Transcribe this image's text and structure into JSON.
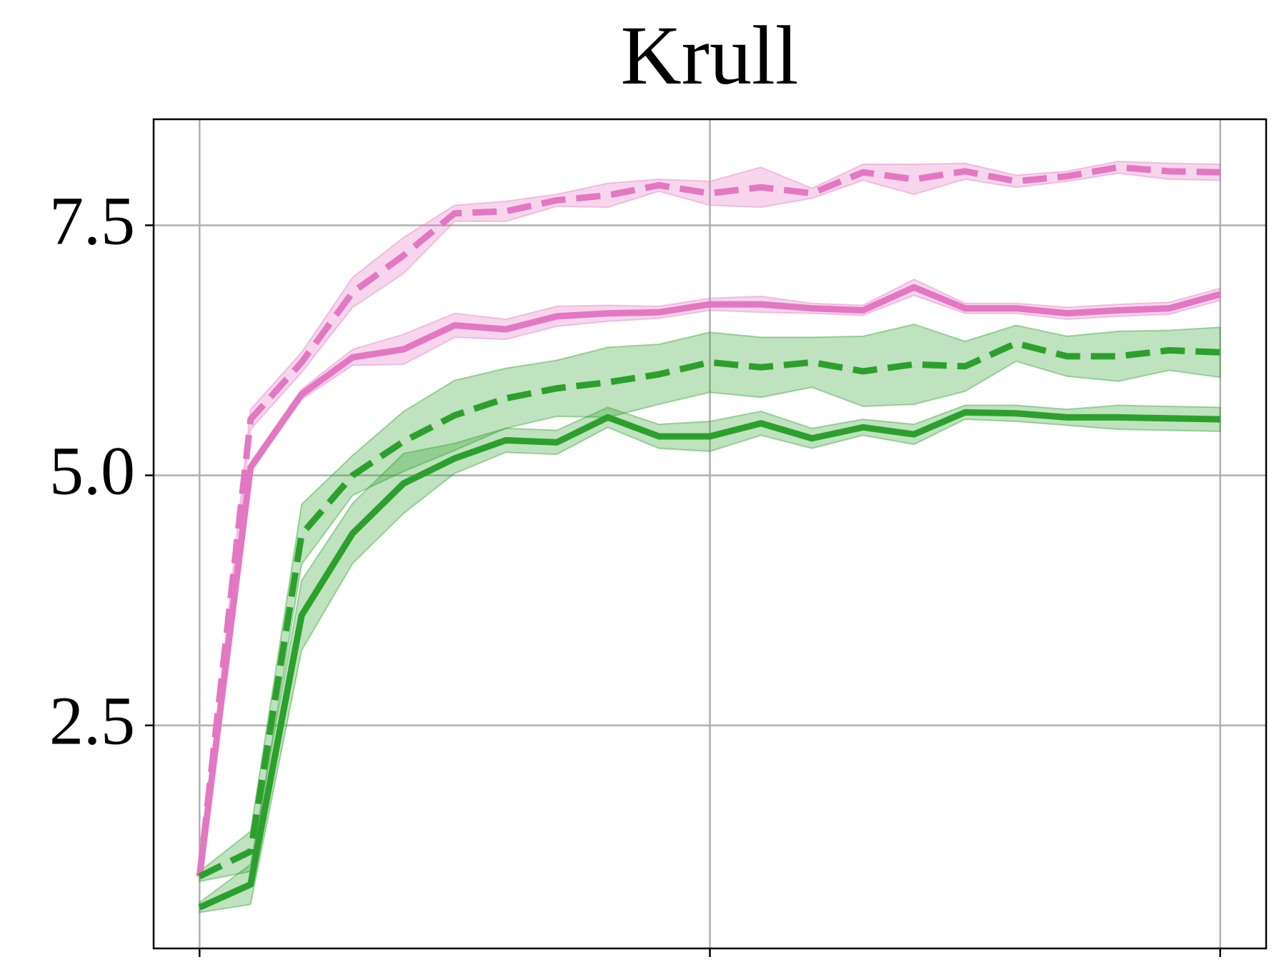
{
  "chart_data": {
    "type": "line",
    "title": "Krull",
    "x": [
      0,
      1,
      2,
      3,
      4,
      5,
      6,
      7,
      8,
      9,
      10,
      11,
      12,
      13,
      14,
      15,
      16,
      17,
      18,
      19,
      20
    ],
    "xlim": [
      -0.9,
      20.9
    ],
    "xticks": [
      0,
      10,
      20
    ],
    "ylim": [
      0.27,
      8.56
    ],
    "yticks": [
      2.5,
      {
        "value": 5,
        "label": "5.0"
      },
      7.5
    ],
    "grid": true,
    "series": [
      {
        "color": "#e377c2",
        "dashed": true,
        "values": [
          0.99,
          5.56,
          6.13,
          6.83,
          7.2,
          7.62,
          7.64,
          7.75,
          7.8,
          7.9,
          7.82,
          7.88,
          7.82,
          8.03,
          7.96,
          8.04,
          7.94,
          7.99,
          8.08,
          8.04,
          8.03
        ],
        "error": [
          0.03,
          0.1,
          0.1,
          0.15,
          0.18,
          0.08,
          0.1,
          0.06,
          0.12,
          0.06,
          0.12,
          0.2,
          0.05,
          0.08,
          0.15,
          0.08,
          0.06,
          0.05,
          0.06,
          0.08,
          0.08
        ]
      },
      {
        "color": "#e377c2",
        "dashed": false,
        "values": [
          0.99,
          5.08,
          5.81,
          6.18,
          6.26,
          6.5,
          6.46,
          6.59,
          6.62,
          6.63,
          6.71,
          6.71,
          6.67,
          6.65,
          6.88,
          6.67,
          6.67,
          6.62,
          6.65,
          6.67,
          6.81
        ],
        "error": [
          0.03,
          0.05,
          0.05,
          0.08,
          0.15,
          0.12,
          0.1,
          0.1,
          0.08,
          0.06,
          0.06,
          0.08,
          0.05,
          0.05,
          0.08,
          0.05,
          0.05,
          0.06,
          0.06,
          0.06,
          0.06
        ]
      },
      {
        "color": "#2ca02c",
        "dashed": true,
        "values": [
          0.99,
          1.24,
          4.41,
          5.0,
          5.34,
          5.6,
          5.77,
          5.87,
          5.93,
          6.01,
          6.13,
          6.08,
          6.13,
          6.04,
          6.11,
          6.09,
          6.32,
          6.19,
          6.19,
          6.25,
          6.23
        ],
        "error": [
          0.05,
          0.2,
          0.3,
          0.2,
          0.3,
          0.35,
          0.3,
          0.28,
          0.35,
          0.3,
          0.3,
          0.3,
          0.25,
          0.35,
          0.4,
          0.25,
          0.18,
          0.2,
          0.25,
          0.2,
          0.25
        ]
      },
      {
        "color": "#2ca02c",
        "dashed": false,
        "values": [
          0.68,
          0.91,
          3.6,
          4.42,
          4.92,
          5.17,
          5.35,
          5.33,
          5.58,
          5.39,
          5.39,
          5.52,
          5.37,
          5.48,
          5.41,
          5.63,
          5.62,
          5.58,
          5.58,
          5.57,
          5.56
        ],
        "error": [
          0.05,
          0.2,
          0.35,
          0.3,
          0.3,
          0.15,
          0.12,
          0.12,
          0.1,
          0.12,
          0.15,
          0.12,
          0.1,
          0.08,
          0.1,
          0.07,
          0.08,
          0.08,
          0.12,
          0.12,
          0.12
        ]
      }
    ]
  }
}
